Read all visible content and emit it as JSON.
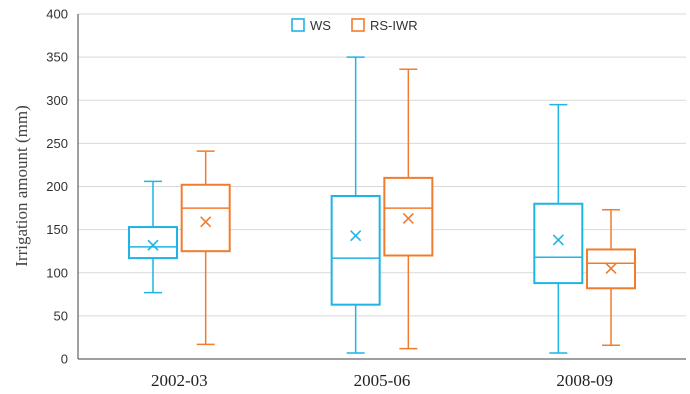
{
  "chart_data": {
    "type": "box",
    "title": "",
    "xlabel": "",
    "ylabel": "Irrigation amount (mm)",
    "ylim": [
      0,
      400
    ],
    "yticks": [
      0,
      50,
      100,
      150,
      200,
      250,
      300,
      350,
      400
    ],
    "grid": "horizontal",
    "legend_position": "top-center",
    "categories": [
      "2002-03",
      "2005-06",
      "2008-09"
    ],
    "series": [
      {
        "name": "WS",
        "color": "#1eb4e6",
        "boxes": [
          {
            "min": 77,
            "q1": 117,
            "median": 130,
            "q3": 153,
            "max": 206,
            "mean": 132
          },
          {
            "min": 7,
            "q1": 63,
            "median": 117,
            "q3": 189,
            "max": 350,
            "mean": 143
          },
          {
            "min": 7,
            "q1": 88,
            "median": 118,
            "q3": 180,
            "max": 295,
            "mean": 138
          }
        ]
      },
      {
        "name": "RS-IWR",
        "color": "#f07c2e",
        "boxes": [
          {
            "min": 17,
            "q1": 125,
            "median": 175,
            "q3": 202,
            "max": 241,
            "mean": 159
          },
          {
            "min": 12,
            "q1": 120,
            "median": 175,
            "q3": 210,
            "max": 336,
            "mean": 163
          },
          {
            "min": 16,
            "q1": 82,
            "median": 111,
            "q3": 127,
            "max": 173,
            "mean": 105
          }
        ]
      }
    ]
  }
}
